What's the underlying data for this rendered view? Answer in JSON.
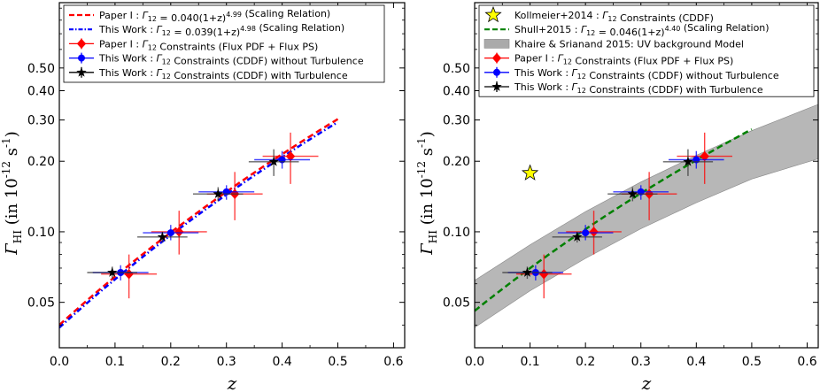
{
  "chart_data": [
    {
      "type": "line",
      "panel": "left",
      "xlabel": "z",
      "ylabel": "Γ_HI (in 10^-12 s^-1)",
      "xlim": [
        0.0,
        0.62
      ],
      "ylim": [
        0.032,
        0.95
      ],
      "yscale": "log",
      "grid": false,
      "legend_position": "top-left",
      "x_ticks": [
        "0.0",
        "0.1",
        "0.2",
        "0.3",
        "0.4",
        "0.5",
        "0.6"
      ],
      "y_ticks": [
        {
          "value": 0.05,
          "label": "0.05"
        },
        {
          "value": 0.1,
          "label": "0.10"
        },
        {
          "value": 0.2,
          "label": "0.20"
        },
        {
          "value": 0.3,
          "label": "0.30"
        },
        {
          "value": 0.4,
          "label": "0.40"
        },
        {
          "value": 0.5,
          "label": "0.50"
        }
      ],
      "series": [
        {
          "name": "Paper I : Γ12 = 0.040(1+z)^4.99 (Scaling Relation)",
          "kind": "curve",
          "style": "dashed",
          "color": "#ff0000",
          "coef": 0.04,
          "exp": 4.99,
          "x_range": [
            0.0,
            0.5
          ]
        },
        {
          "name": "This Work : Γ12 = 0.039(1+z)^4.98 (Scaling Relation)",
          "kind": "curve",
          "style": "dashdot",
          "color": "#0000ff",
          "coef": 0.039,
          "exp": 4.98,
          "x_range": [
            0.0,
            0.5
          ]
        },
        {
          "name": "Paper I : Γ12 Constraints (Flux PDF + Flux PS)",
          "kind": "points",
          "marker": "diamond",
          "color": "#ff0000",
          "points": [
            {
              "x": 0.125,
              "y": 0.066,
              "xerr": 0.05,
              "ylo": 0.052,
              "yhi": 0.08
            },
            {
              "x": 0.215,
              "y": 0.1,
              "xerr": 0.05,
              "ylo": 0.08,
              "yhi": 0.123
            },
            {
              "x": 0.315,
              "y": 0.145,
              "xerr": 0.05,
              "ylo": 0.112,
              "yhi": 0.18
            },
            {
              "x": 0.415,
              "y": 0.21,
              "xerr": 0.05,
              "ylo": 0.16,
              "yhi": 0.265
            }
          ]
        },
        {
          "name": "This Work : Γ12 Constraints (CDDF) without Turbulence",
          "kind": "points",
          "marker": "circle",
          "color": "#0000ff",
          "points": [
            {
              "x": 0.11,
              "y": 0.067,
              "xerr": 0.05,
              "ylo": 0.062,
              "yhi": 0.072
            },
            {
              "x": 0.2,
              "y": 0.099,
              "xerr": 0.05,
              "ylo": 0.092,
              "yhi": 0.107
            },
            {
              "x": 0.3,
              "y": 0.148,
              "xerr": 0.05,
              "ylo": 0.137,
              "yhi": 0.158
            },
            {
              "x": 0.4,
              "y": 0.203,
              "xerr": 0.05,
              "ylo": 0.186,
              "yhi": 0.221
            }
          ]
        },
        {
          "name": "This Work : Γ12 Constraints (CDDF) with Turbulence",
          "kind": "points",
          "marker": "star",
          "color": "#000000",
          "points": [
            {
              "x": 0.095,
              "y": 0.067,
              "xerr": 0.045,
              "ylo": 0.063,
              "yhi": 0.071
            },
            {
              "x": 0.185,
              "y": 0.095,
              "xerr": 0.045,
              "ylo": 0.09,
              "yhi": 0.1
            },
            {
              "x": 0.285,
              "y": 0.145,
              "xerr": 0.045,
              "ylo": 0.135,
              "yhi": 0.155
            },
            {
              "x": 0.385,
              "y": 0.199,
              "xerr": 0.045,
              "ylo": 0.173,
              "yhi": 0.225
            }
          ]
        }
      ]
    },
    {
      "type": "line",
      "panel": "right",
      "xlabel": "z",
      "ylabel": "Γ_HI (in 10^-12 s^-1)",
      "xlim": [
        0.0,
        0.62
      ],
      "ylim": [
        0.032,
        0.95
      ],
      "yscale": "log",
      "grid": false,
      "legend_position": "top-left",
      "x_ticks": [
        "0.0",
        "0.1",
        "0.2",
        "0.3",
        "0.4",
        "0.5",
        "0.6"
      ],
      "y_ticks": [
        {
          "value": 0.05,
          "label": "0.05"
        },
        {
          "value": 0.1,
          "label": "0.10"
        },
        {
          "value": 0.2,
          "label": "0.20"
        },
        {
          "value": 0.3,
          "label": "0.30"
        },
        {
          "value": 0.4,
          "label": "0.40"
        },
        {
          "value": 0.5,
          "label": "0.50"
        }
      ],
      "series": [
        {
          "name": "Kollmeier+2014 : Γ12 Constraints (CDDF)",
          "kind": "points",
          "marker": "bigstar",
          "color": "#ffff00",
          "points": [
            {
              "x": 0.1,
              "y": 0.178
            }
          ]
        },
        {
          "name": "Shull+2015 : Γ12 = 0.046(1+z)^4.40 (Scaling Relation)",
          "kind": "curve",
          "style": "dashed",
          "color": "#008000",
          "coef": 0.046,
          "exp": 4.4,
          "x_range": [
            0.0,
            0.5
          ]
        },
        {
          "name": "Khaire & Srianand 2015: UV background Model",
          "kind": "band",
          "color": "#aaaaaa",
          "x": [
            0.0,
            0.1,
            0.2,
            0.3,
            0.4,
            0.5,
            0.62
          ],
          "lower": [
            0.039,
            0.056,
            0.077,
            0.103,
            0.133,
            0.168,
            0.205
          ],
          "upper": [
            0.062,
            0.088,
            0.122,
            0.163,
            0.212,
            0.27,
            0.35
          ]
        },
        {
          "name": "Paper I : Γ12 Constraints (Flux PDF + Flux PS)",
          "kind": "points",
          "marker": "diamond",
          "color": "#ff0000",
          "points": [
            {
              "x": 0.125,
              "y": 0.066,
              "xerr": 0.05,
              "ylo": 0.052,
              "yhi": 0.08
            },
            {
              "x": 0.215,
              "y": 0.1,
              "xerr": 0.05,
              "ylo": 0.08,
              "yhi": 0.123
            },
            {
              "x": 0.315,
              "y": 0.145,
              "xerr": 0.05,
              "ylo": 0.112,
              "yhi": 0.18
            },
            {
              "x": 0.415,
              "y": 0.21,
              "xerr": 0.05,
              "ylo": 0.16,
              "yhi": 0.265
            }
          ]
        },
        {
          "name": "This Work : Γ12 Constraints (CDDF) without Turbulence",
          "kind": "points",
          "marker": "circle",
          "color": "#0000ff",
          "points": [
            {
              "x": 0.11,
              "y": 0.067,
              "xerr": 0.05,
              "ylo": 0.062,
              "yhi": 0.072
            },
            {
              "x": 0.2,
              "y": 0.099,
              "xerr": 0.05,
              "ylo": 0.092,
              "yhi": 0.107
            },
            {
              "x": 0.3,
              "y": 0.148,
              "xerr": 0.05,
              "ylo": 0.137,
              "yhi": 0.158
            },
            {
              "x": 0.4,
              "y": 0.203,
              "xerr": 0.05,
              "ylo": 0.186,
              "yhi": 0.221
            }
          ]
        },
        {
          "name": "This Work : Γ12 Constraints (CDDF) with Turbulence",
          "kind": "points",
          "marker": "star",
          "color": "#000000",
          "points": [
            {
              "x": 0.095,
              "y": 0.067,
              "xerr": 0.045,
              "ylo": 0.063,
              "yhi": 0.071
            },
            {
              "x": 0.185,
              "y": 0.095,
              "xerr": 0.045,
              "ylo": 0.09,
              "yhi": 0.1
            },
            {
              "x": 0.285,
              "y": 0.145,
              "xerr": 0.045,
              "ylo": 0.135,
              "yhi": 0.155
            },
            {
              "x": 0.385,
              "y": 0.199,
              "xerr": 0.045,
              "ylo": 0.173,
              "yhi": 0.225
            }
          ]
        }
      ]
    }
  ]
}
